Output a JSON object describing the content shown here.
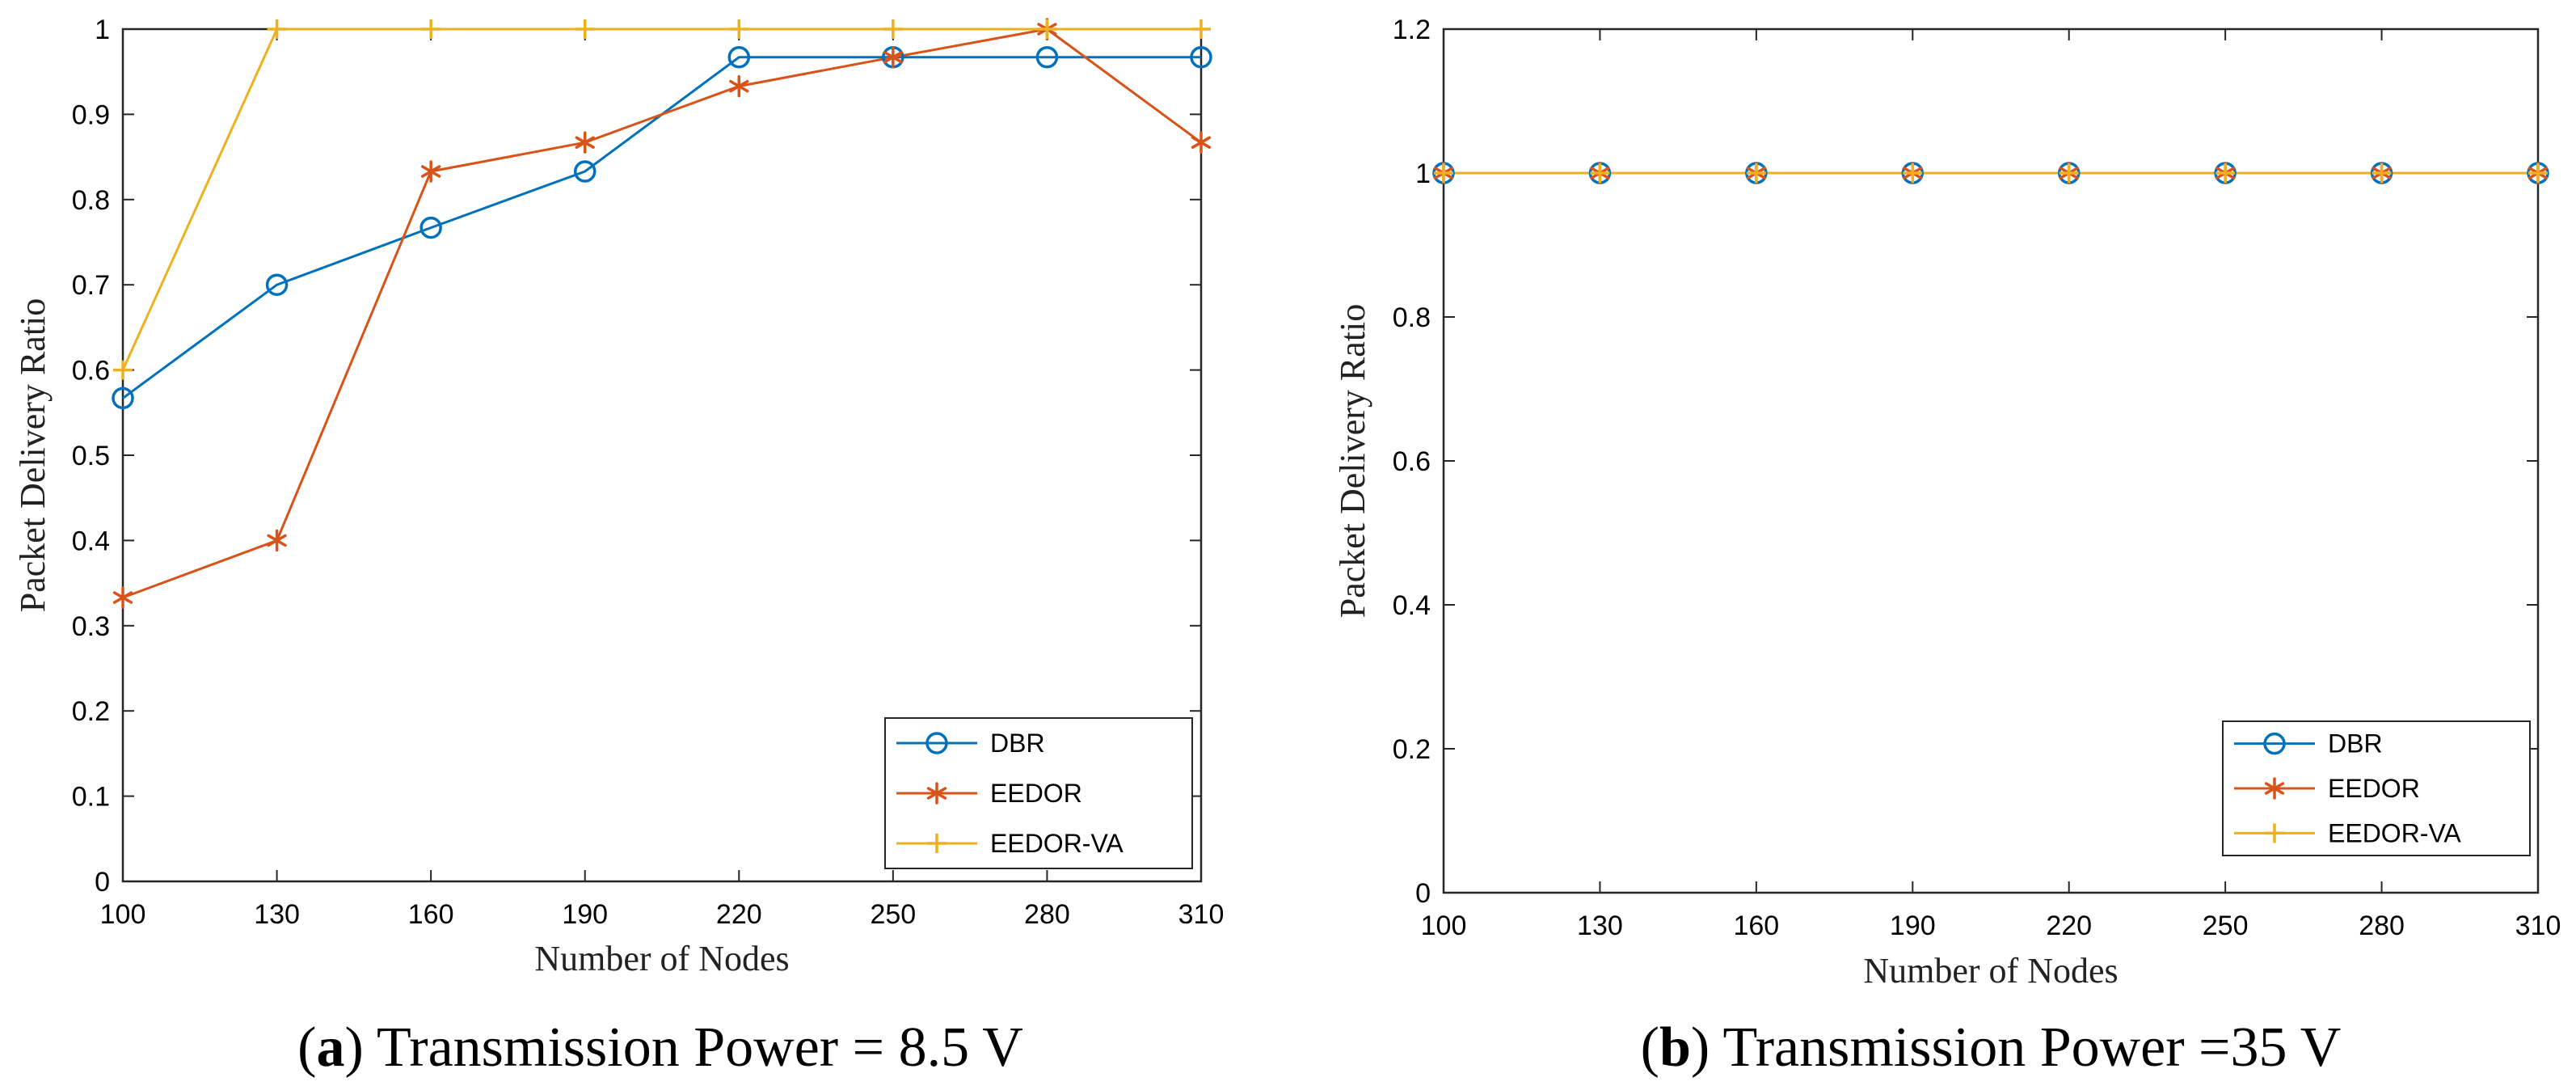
{
  "chart_data": [
    {
      "type": "line",
      "caption": {
        "letter": "a",
        "text": ") Transmission Power = 8.5 V"
      },
      "title": "",
      "xlabel": "Number of Nodes",
      "ylabel": "Packet Delivery Ratio",
      "x": [
        100,
        130,
        160,
        190,
        220,
        250,
        280,
        310
      ],
      "x_tick_labels": [
        "100",
        "130",
        "160",
        "190",
        "220",
        "250",
        "280",
        "310"
      ],
      "xlim": [
        100,
        310
      ],
      "ylim": [
        0,
        1
      ],
      "y_ticks": [
        0,
        0.1,
        0.2,
        0.3,
        0.4,
        0.5,
        0.6,
        0.7,
        0.8,
        0.9,
        1
      ],
      "y_tick_labels": [
        "0",
        "0.1",
        "0.2",
        "0.3",
        "0.4",
        "0.5",
        "0.6",
        "0.7",
        "0.8",
        "0.9",
        "1"
      ],
      "grid": false,
      "legend_position": "bottom-right",
      "series": [
        {
          "name": "DBR",
          "color": "#0072BD",
          "marker": "circle",
          "values": [
            0.567,
            0.7,
            0.767,
            0.833,
            0.967,
            0.967,
            0.967,
            0.967
          ]
        },
        {
          "name": "EEDOR",
          "color": "#D95319",
          "marker": "asterisk",
          "values": [
            0.333,
            0.4,
            0.833,
            0.867,
            0.933,
            0.967,
            1.0,
            0.867
          ]
        },
        {
          "name": "EEDOR-VA",
          "color": "#EDB120",
          "marker": "plus",
          "values": [
            0.6,
            1.0,
            1.0,
            1.0,
            1.0,
            1.0,
            1.0,
            1.0
          ]
        }
      ]
    },
    {
      "type": "line",
      "caption": {
        "letter": "b",
        "text": ") Transmission Power =35 V"
      },
      "title": "",
      "xlabel": "Number of Nodes",
      "ylabel": "Packet Delivery Ratio",
      "x": [
        100,
        130,
        160,
        190,
        220,
        250,
        280,
        310
      ],
      "x_tick_labels": [
        "100",
        "130",
        "160",
        "190",
        "220",
        "250",
        "280",
        "310"
      ],
      "xlim": [
        100,
        310
      ],
      "ylim": [
        0,
        1.2
      ],
      "y_ticks": [
        0,
        0.2,
        0.4,
        0.6,
        0.8,
        1,
        1.2
      ],
      "y_tick_labels": [
        "0",
        "0.2",
        "0.4",
        "0.6",
        "0.8",
        "1",
        "1.2"
      ],
      "grid": false,
      "legend_position": "bottom-right",
      "series": [
        {
          "name": "DBR",
          "color": "#0072BD",
          "marker": "circle",
          "values": [
            1,
            1,
            1,
            1,
            1,
            1,
            1,
            1
          ]
        },
        {
          "name": "EEDOR",
          "color": "#D95319",
          "marker": "asterisk",
          "values": [
            1,
            1,
            1,
            1,
            1,
            1,
            1,
            1
          ]
        },
        {
          "name": "EEDOR-VA",
          "color": "#EDB120",
          "marker": "plus",
          "values": [
            1,
            1,
            1,
            1,
            1,
            1,
            1,
            1
          ]
        }
      ]
    }
  ]
}
